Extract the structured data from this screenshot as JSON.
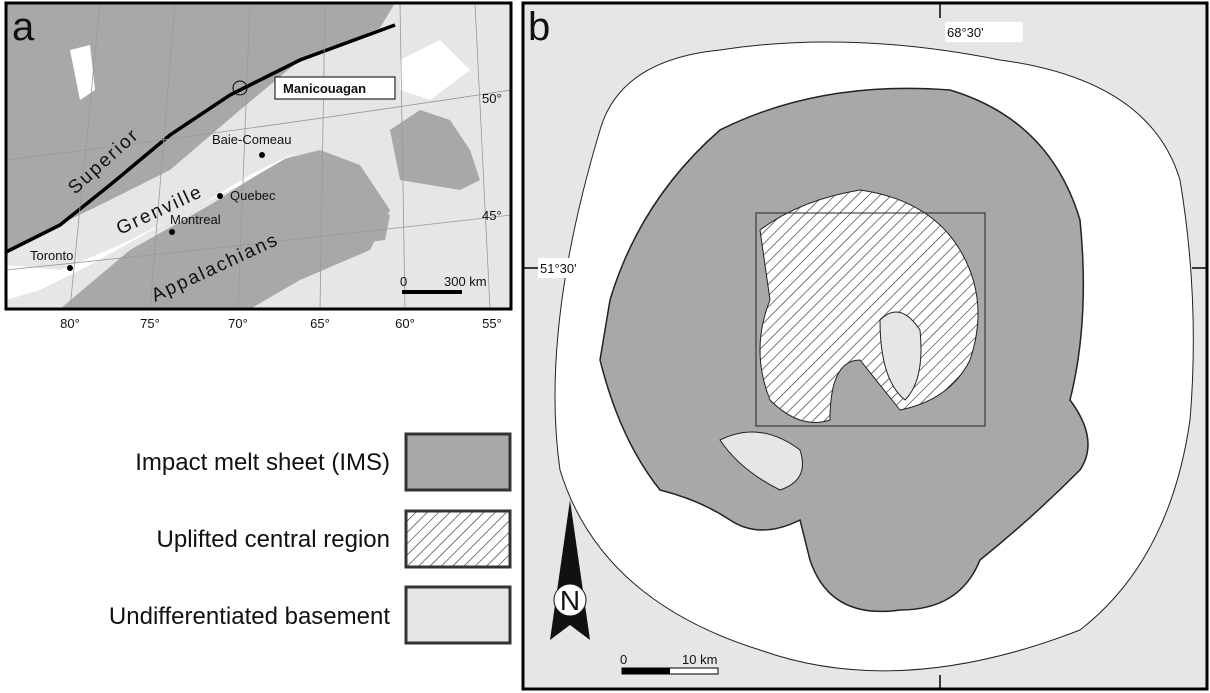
{
  "panel_a": {
    "label": "a",
    "regions": [
      "Superior",
      "Grenville",
      "Appalachians"
    ],
    "places": [
      "Manicouagan",
      "Baie-Comeau",
      "Quebec",
      "Montreal",
      "Toronto"
    ],
    "latitudes": [
      "50°",
      "45°"
    ],
    "longitudes": [
      "80°",
      "75°",
      "70°",
      "65°",
      "60°",
      "55°"
    ],
    "scale": {
      "start": "0",
      "end": "300 km"
    }
  },
  "panel_b": {
    "label": "b",
    "longitude": "68°30'",
    "latitude": "51°30'",
    "north": "N",
    "scale": {
      "start": "0",
      "end": "10 km"
    }
  },
  "legend": [
    {
      "label": "Impact melt sheet (IMS)"
    },
    {
      "label": "Uplifted central region"
    },
    {
      "label": "Undifferentiated basement"
    }
  ]
}
